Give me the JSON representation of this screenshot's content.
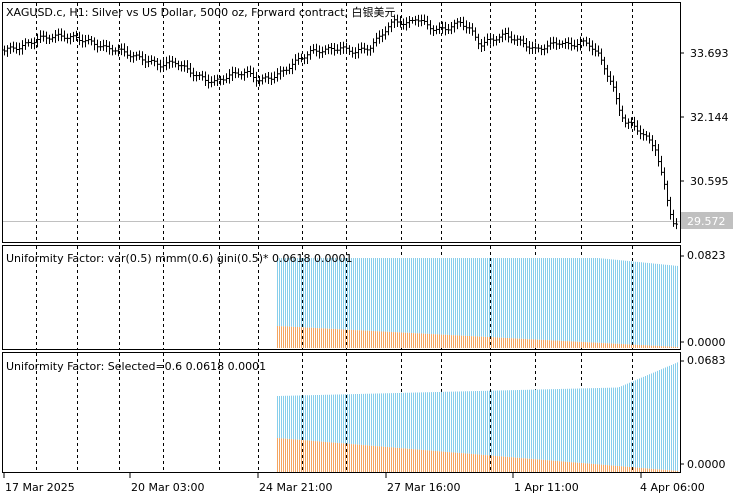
{
  "main_pane": {
    "title": "XAGUSD.c, H1:  Silver vs US Dollar, 5000 oz, Forward contract, 白银美元",
    "price_ticks": [
      "33.693",
      "32.144",
      "30.595"
    ],
    "current_price": "29.572"
  },
  "indicator_1": {
    "title": "Uniformity Factor: var(0.5) mmm(0.6) gini(0.5)* 0.0618 0.0001",
    "scale_max": "0.0823",
    "scale_min": "0.0000"
  },
  "indicator_2": {
    "title": "Uniformity Factor: Selected=0.6 0.0618 0.0001",
    "scale_max": "0.0683",
    "scale_min": "0.0000"
  },
  "time_axis": {
    "labels": [
      "17 Mar 2025",
      "20 Mar 03:00",
      "24 Mar 21:00",
      "27 Mar 16:00",
      "1 Apr 11:00",
      "4 Apr 06:00"
    ]
  },
  "colors": {
    "background": "#ffffff",
    "foreground": "#000000",
    "blue_histogram": "#87CEEB",
    "orange_histogram": "#F4A460",
    "price_tag_bg": "#C0C0C0",
    "grid": "#000000"
  }
}
